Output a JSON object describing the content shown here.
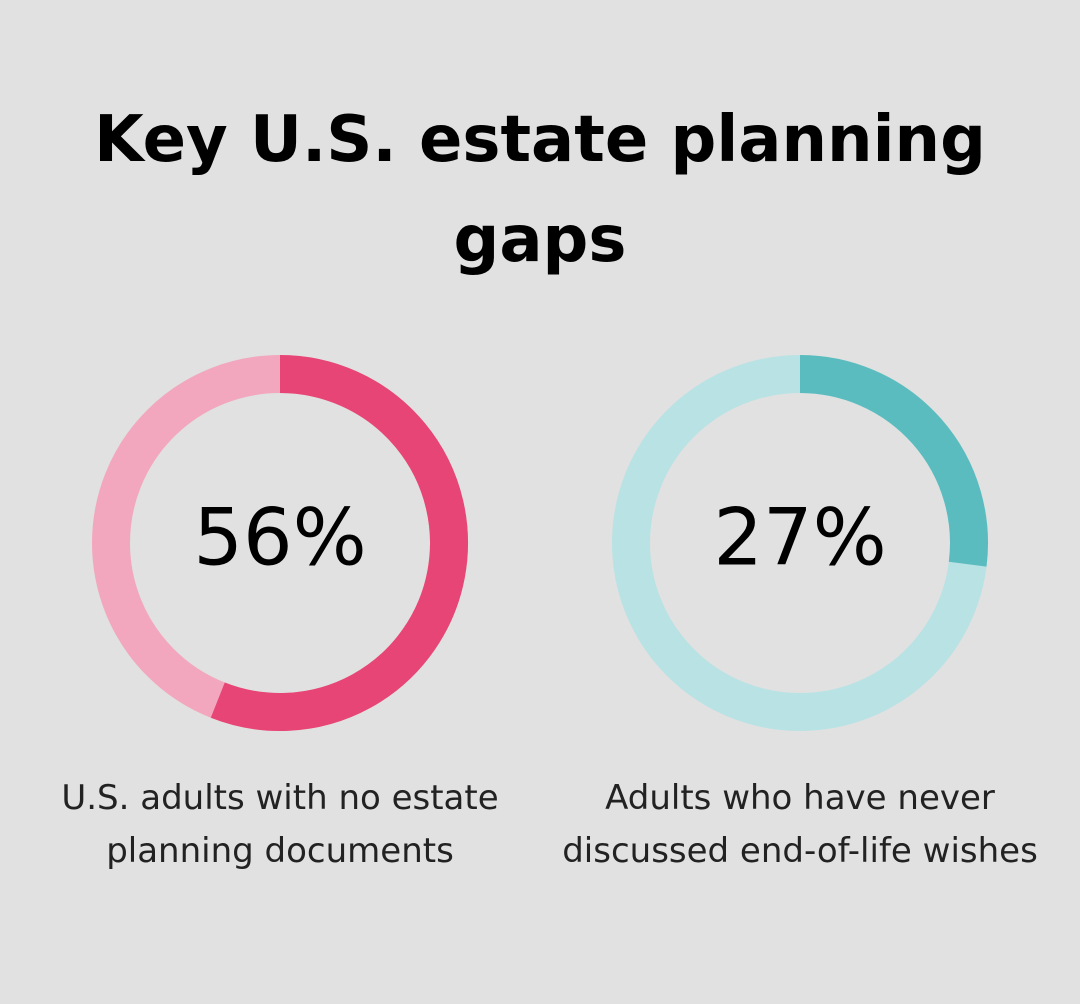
{
  "title": "Key U.S. estate planning gaps",
  "chart_data": [
    {
      "type": "donut",
      "values": [
        56
      ],
      "value_labels": [
        "56%"
      ],
      "ylim": [
        0,
        100
      ],
      "label": "U.S. adults with no estate planning documents",
      "color": "#e64575",
      "track_color": "#f2a7be"
    },
    {
      "type": "donut",
      "values": [
        27
      ],
      "value_labels": [
        "27%"
      ],
      "ylim": [
        0,
        100
      ],
      "label": "Adults who have never discussed end-of-life wishes",
      "color": "#5bbcbf",
      "track_color": "#b9e2e4"
    }
  ]
}
